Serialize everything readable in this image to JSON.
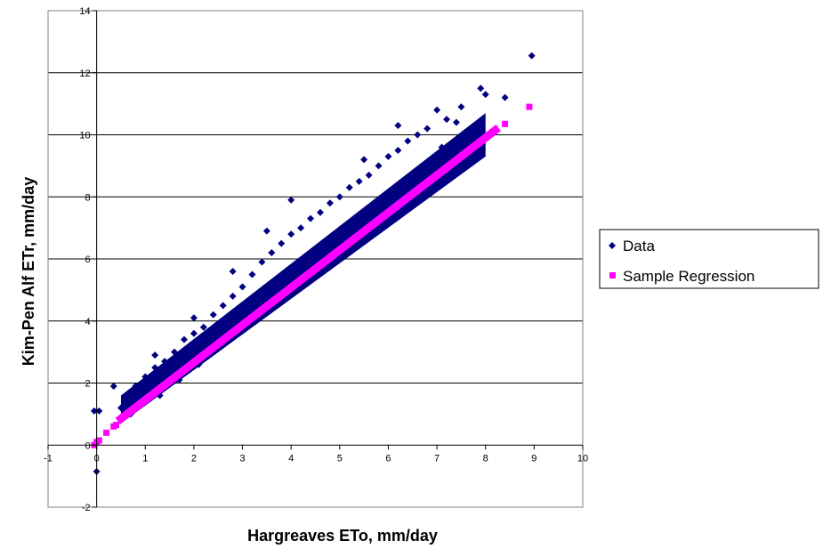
{
  "chart_data": {
    "type": "scatter",
    "title": "",
    "xlabel": "Hargreaves ETo, mm/day",
    "ylabel": "Kim-Pen Alf ETr, mm/day",
    "xlim": [
      -1,
      10
    ],
    "ylim": [
      -2,
      14
    ],
    "x_ticks": [
      "-1",
      "0",
      "1",
      "2",
      "3",
      "4",
      "5",
      "6",
      "7",
      "8",
      "9",
      "10"
    ],
    "y_ticks": [
      "-2",
      "0",
      "2",
      "4",
      "6",
      "8",
      "10",
      "12",
      "14"
    ],
    "grid": "horizontal",
    "legend_position": "right",
    "series": [
      {
        "name": "Data",
        "marker": "diamond",
        "color": "#000080",
        "points": [
          [
            0.0,
            -0.85
          ],
          [
            -0.05,
            1.1
          ],
          [
            0.05,
            1.1
          ],
          [
            0.35,
            1.9
          ],
          [
            0.5,
            1.2
          ],
          [
            0.6,
            1.5
          ],
          [
            0.7,
            1.0
          ],
          [
            0.8,
            1.9
          ],
          [
            0.9,
            1.4
          ],
          [
            1.0,
            2.2
          ],
          [
            1.1,
            1.5
          ],
          [
            1.2,
            2.5
          ],
          [
            1.3,
            1.6
          ],
          [
            1.4,
            2.7
          ],
          [
            1.5,
            2.0
          ],
          [
            1.6,
            3.0
          ],
          [
            1.7,
            2.1
          ],
          [
            1.8,
            3.4
          ],
          [
            1.9,
            2.5
          ],
          [
            2.0,
            3.6
          ],
          [
            2.1,
            2.6
          ],
          [
            2.2,
            3.8
          ],
          [
            2.3,
            3.0
          ],
          [
            2.4,
            4.2
          ],
          [
            2.5,
            3.3
          ],
          [
            2.6,
            4.5
          ],
          [
            2.7,
            3.5
          ],
          [
            2.8,
            4.8
          ],
          [
            2.9,
            3.8
          ],
          [
            3.0,
            5.1
          ],
          [
            3.1,
            4.0
          ],
          [
            3.2,
            5.5
          ],
          [
            3.3,
            4.3
          ],
          [
            3.4,
            5.9
          ],
          [
            3.5,
            4.5
          ],
          [
            3.6,
            6.2
          ],
          [
            3.7,
            4.9
          ],
          [
            3.8,
            6.5
          ],
          [
            3.9,
            5.1
          ],
          [
            4.0,
            6.8
          ],
          [
            4.1,
            5.3
          ],
          [
            4.2,
            7.0
          ],
          [
            4.3,
            5.6
          ],
          [
            4.4,
            7.3
          ],
          [
            4.5,
            5.9
          ],
          [
            4.6,
            7.5
          ],
          [
            4.7,
            6.1
          ],
          [
            4.8,
            7.8
          ],
          [
            4.9,
            6.4
          ],
          [
            5.0,
            8.0
          ],
          [
            5.1,
            6.6
          ],
          [
            5.2,
            8.3
          ],
          [
            5.3,
            6.9
          ],
          [
            5.4,
            8.5
          ],
          [
            5.5,
            7.1
          ],
          [
            5.6,
            8.7
          ],
          [
            5.7,
            7.4
          ],
          [
            5.8,
            9.0
          ],
          [
            5.9,
            7.6
          ],
          [
            6.0,
            9.3
          ],
          [
            6.1,
            7.8
          ],
          [
            6.2,
            9.5
          ],
          [
            6.3,
            8.0
          ],
          [
            6.4,
            9.8
          ],
          [
            6.5,
            8.2
          ],
          [
            6.6,
            10.0
          ],
          [
            6.7,
            8.4
          ],
          [
            6.8,
            10.2
          ],
          [
            6.9,
            8.6
          ],
          [
            7.0,
            10.8
          ],
          [
            7.1,
            8.8
          ],
          [
            7.2,
            10.5
          ],
          [
            7.3,
            9.0
          ],
          [
            7.4,
            10.4
          ],
          [
            7.5,
            9.2
          ],
          [
            7.6,
            10.1
          ],
          [
            7.7,
            9.5
          ],
          [
            7.8,
            10.2
          ],
          [
            7.9,
            11.5
          ],
          [
            8.0,
            11.3
          ],
          [
            8.4,
            11.2
          ],
          [
            8.95,
            12.55
          ],
          [
            4.0,
            7.9
          ],
          [
            3.5,
            6.9
          ],
          [
            2.8,
            5.6
          ],
          [
            5.5,
            9.2
          ],
          [
            6.2,
            10.3
          ],
          [
            7.1,
            9.6
          ],
          [
            7.5,
            10.9
          ],
          [
            1.2,
            2.9
          ],
          [
            2.0,
            4.1
          ]
        ]
      },
      {
        "name": "Sample Regression",
        "marker": "square",
        "color": "#ff00ff",
        "points": [
          [
            -0.05,
            0.0
          ],
          [
            0.0,
            0.1
          ],
          [
            0.05,
            0.15
          ],
          [
            0.2,
            0.4
          ],
          [
            0.35,
            0.6
          ],
          [
            0.4,
            0.65
          ],
          [
            0.5,
            0.85
          ],
          [
            8.4,
            10.35
          ],
          [
            8.9,
            10.9
          ]
        ],
        "line_segment": {
          "x_start": 0.5,
          "y_start": 0.85,
          "x_end": 8.2,
          "y_end": 10.15
        }
      }
    ],
    "data_band": {
      "x_start": 0.5,
      "x_end": 8.0,
      "lower_start": 0.7,
      "lower_end": 9.3,
      "upper_start": 1.6,
      "upper_end": 10.7
    }
  }
}
